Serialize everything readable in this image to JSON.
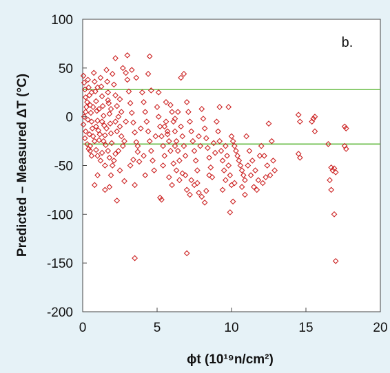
{
  "chart_data": {
    "type": "scatter",
    "title": "",
    "panel_label": "b.",
    "xlabel": "ϕt (10¹⁹n/cm²)",
    "ylabel": "Predicted – Measured ΔT (°C)",
    "xlim": [
      0,
      20
    ],
    "ylim": [
      -200,
      100
    ],
    "x_ticks": [
      "0",
      "5",
      "10",
      "15",
      "20"
    ],
    "y_ticks": [
      "100",
      "50",
      "0",
      "-50",
      "-100",
      "-150",
      "-200"
    ],
    "grid": false,
    "marker": "open-diamond",
    "colors": {
      "points": "#cc2222",
      "bands": "#66bb44",
      "background": "#e6f2f7",
      "plot_area": "#ffffff"
    },
    "reference_lines": [
      {
        "y": 28
      },
      {
        "y": -28
      }
    ],
    "points": [
      [
        0.05,
        42
      ],
      [
        0.1,
        35
      ],
      [
        0.15,
        28
      ],
      [
        0.2,
        20
      ],
      [
        0.25,
        10
      ],
      [
        0.1,
        0
      ],
      [
        0.05,
        -8
      ],
      [
        0.2,
        -15
      ],
      [
        0.15,
        -22
      ],
      [
        0.3,
        -28
      ],
      [
        0.35,
        38
      ],
      [
        0.4,
        30
      ],
      [
        0.45,
        22
      ],
      [
        0.5,
        12
      ],
      [
        0.55,
        4
      ],
      [
        0.6,
        -5
      ],
      [
        0.65,
        -12
      ],
      [
        0.7,
        -20
      ],
      [
        0.5,
        -30
      ],
      [
        0.4,
        -33
      ],
      [
        0.75,
        45
      ],
      [
        0.8,
        36
      ],
      [
        0.85,
        26
      ],
      [
        0.9,
        16
      ],
      [
        0.95,
        6
      ],
      [
        1.0,
        -4
      ],
      [
        1.05,
        -14
      ],
      [
        1.1,
        -24
      ],
      [
        0.9,
        -34
      ],
      [
        1.0,
        -40
      ],
      [
        1.2,
        40
      ],
      [
        1.25,
        31
      ],
      [
        1.3,
        21
      ],
      [
        1.35,
        11
      ],
      [
        1.4,
        1
      ],
      [
        1.45,
        -9
      ],
      [
        1.5,
        -19
      ],
      [
        1.55,
        -29
      ],
      [
        1.3,
        -37
      ],
      [
        1.2,
        -45
      ],
      [
        1.6,
        48
      ],
      [
        1.65,
        36
      ],
      [
        1.7,
        25
      ],
      [
        1.75,
        14
      ],
      [
        1.8,
        3
      ],
      [
        1.85,
        -7
      ],
      [
        1.9,
        -17
      ],
      [
        1.95,
        -27
      ],
      [
        1.7,
        -35
      ],
      [
        1.8,
        -42
      ],
      [
        2.0,
        44
      ],
      [
        2.1,
        33
      ],
      [
        2.2,
        22
      ],
      [
        2.3,
        11
      ],
      [
        2.4,
        0
      ],
      [
        2.5,
        -10
      ],
      [
        2.6,
        -20
      ],
      [
        2.7,
        -30
      ],
      [
        2.2,
        -38
      ],
      [
        2.0,
        -50
      ],
      [
        0.3,
        15
      ],
      [
        0.6,
        25
      ],
      [
        0.9,
        -10
      ],
      [
        1.1,
        8
      ],
      [
        1.4,
        -25
      ],
      [
        1.7,
        17
      ],
      [
        2.3,
        -15
      ],
      [
        2.6,
        5
      ],
      [
        0.45,
        -18
      ],
      [
        0.8,
        -25
      ],
      [
        1.0,
        30
      ],
      [
        1.3,
        -5
      ],
      [
        1.6,
        -12
      ],
      [
        1.9,
        8
      ],
      [
        2.2,
        -5
      ],
      [
        2.5,
        18
      ],
      [
        0.2,
        5
      ],
      [
        0.35,
        -3
      ],
      [
        0.7,
        10
      ],
      [
        1.15,
        -18
      ],
      [
        0.6,
        -40
      ],
      [
        1.5,
        -50
      ],
      [
        1.0,
        -60
      ],
      [
        0.8,
        -70
      ],
      [
        0.5,
        -35
      ],
      [
        1.9,
        -60
      ],
      [
        2.1,
        -45
      ],
      [
        2.4,
        -35
      ],
      [
        2.8,
        -25
      ],
      [
        2.9,
        -5
      ],
      [
        3.0,
        38
      ],
      [
        3.1,
        26
      ],
      [
        3.2,
        14
      ],
      [
        3.3,
        4
      ],
      [
        3.4,
        -6
      ],
      [
        3.5,
        -16
      ],
      [
        3.6,
        -26
      ],
      [
        3.7,
        -36
      ],
      [
        3.8,
        -46
      ],
      [
        3.9,
        -12
      ],
      [
        4.0,
        25
      ],
      [
        4.1,
        15
      ],
      [
        4.2,
        5
      ],
      [
        4.3,
        -5
      ],
      [
        4.4,
        -15
      ],
      [
        4.5,
        -25
      ],
      [
        4.6,
        -35
      ],
      [
        4.7,
        -45
      ],
      [
        4.8,
        -55
      ],
      [
        4.9,
        -20
      ],
      [
        3.0,
        63
      ],
      [
        2.7,
        50
      ],
      [
        2.2,
        60
      ],
      [
        3.6,
        40
      ],
      [
        4.5,
        62
      ],
      [
        4.4,
        44
      ],
      [
        3.3,
        48
      ],
      [
        2.9,
        45
      ],
      [
        4.6,
        27
      ],
      [
        4.2,
        -60
      ],
      [
        3.5,
        -70
      ],
      [
        3.2,
        -50
      ],
      [
        2.8,
        -66
      ],
      [
        2.3,
        -86
      ],
      [
        1.5,
        -75
      ],
      [
        1.8,
        -72
      ],
      [
        3.7,
        -30
      ],
      [
        4.1,
        -40
      ],
      [
        3.4,
        -44
      ],
      [
        2.5,
        -55
      ],
      [
        5.0,
        10
      ],
      [
        5.1,
        0
      ],
      [
        5.2,
        -10
      ],
      [
        5.3,
        -20
      ],
      [
        5.4,
        -30
      ],
      [
        5.5,
        -40
      ],
      [
        5.6,
        -5
      ],
      [
        5.7,
        -15
      ],
      [
        5.8,
        -25
      ],
      [
        5.9,
        -35
      ],
      [
        6.0,
        5
      ],
      [
        6.1,
        -5
      ],
      [
        6.2,
        -15
      ],
      [
        6.3,
        -25
      ],
      [
        6.4,
        -35
      ],
      [
        6.5,
        -45
      ],
      [
        6.6,
        -10
      ],
      [
        6.7,
        -20
      ],
      [
        6.8,
        -30
      ],
      [
        6.9,
        -40
      ],
      [
        5.3,
        -85
      ],
      [
        5.2,
        -83
      ],
      [
        6.1,
        -48
      ],
      [
        5.4,
        -50
      ],
      [
        5.8,
        -62
      ],
      [
        6.3,
        -55
      ],
      [
        6.7,
        -58
      ],
      [
        6.9,
        -60
      ],
      [
        5.6,
        15
      ],
      [
        5.1,
        25
      ],
      [
        6.6,
        40
      ],
      [
        6.8,
        44
      ],
      [
        5.9,
        12
      ],
      [
        6.2,
        -2
      ],
      [
        6.4,
        5
      ],
      [
        6.0,
        -70
      ],
      [
        6.5,
        -65
      ],
      [
        6.2,
        -30
      ],
      [
        5.5,
        -10
      ],
      [
        5.7,
        -18
      ],
      [
        7.0,
        15
      ],
      [
        7.1,
        5
      ],
      [
        7.2,
        -5
      ],
      [
        7.3,
        -15
      ],
      [
        7.4,
        -25
      ],
      [
        7.5,
        -35
      ],
      [
        7.6,
        -45
      ],
      [
        7.7,
        -55
      ],
      [
        7.8,
        -20
      ],
      [
        7.9,
        -30
      ],
      [
        8.0,
        8
      ],
      [
        8.1,
        -2
      ],
      [
        8.2,
        -12
      ],
      [
        8.3,
        -22
      ],
      [
        8.4,
        -32
      ],
      [
        8.5,
        -42
      ],
      [
        8.6,
        -52
      ],
      [
        8.7,
        -62
      ],
      [
        8.8,
        -27
      ],
      [
        8.9,
        -37
      ],
      [
        7.0,
        -75
      ],
      [
        7.2,
        -80
      ],
      [
        7.5,
        -70
      ],
      [
        7.8,
        -78
      ],
      [
        8.0,
        -82
      ],
      [
        8.2,
        -88
      ],
      [
        8.3,
        -76
      ],
      [
        7.3,
        -65
      ],
      [
        7.7,
        -68
      ],
      [
        8.5,
        -60
      ],
      [
        9.0,
        -5
      ],
      [
        9.1,
        -15
      ],
      [
        9.2,
        -25
      ],
      [
        9.3,
        -35
      ],
      [
        9.4,
        -45
      ],
      [
        9.5,
        -55
      ],
      [
        9.6,
        -30
      ],
      [
        9.7,
        -40
      ],
      [
        9.8,
        -50
      ],
      [
        9.9,
        -60
      ],
      [
        10.0,
        -20
      ],
      [
        10.2,
        -30
      ],
      [
        10.4,
        -40
      ],
      [
        10.6,
        -50
      ],
      [
        10.8,
        -60
      ],
      [
        10.1,
        -25
      ],
      [
        10.3,
        -35
      ],
      [
        10.5,
        -45
      ],
      [
        10.7,
        -55
      ],
      [
        10.9,
        -65
      ],
      [
        9.8,
        10
      ],
      [
        9.2,
        10
      ],
      [
        10.0,
        -70
      ],
      [
        10.2,
        -68
      ],
      [
        10.1,
        -87
      ],
      [
        9.9,
        -98
      ],
      [
        10.9,
        -80
      ],
      [
        10.7,
        -72
      ],
      [
        9.6,
        -65
      ],
      [
        9.4,
        -75
      ],
      [
        11.0,
        -20
      ],
      [
        11.2,
        -35
      ],
      [
        11.4,
        -45
      ],
      [
        11.6,
        -55
      ],
      [
        11.8,
        -65
      ],
      [
        11.1,
        -50
      ],
      [
        11.3,
        -60
      ],
      [
        11.5,
        -72
      ],
      [
        11.7,
        -75
      ],
      [
        11.9,
        -40
      ],
      [
        12.0,
        -30
      ],
      [
        12.2,
        -40
      ],
      [
        12.4,
        -50
      ],
      [
        12.6,
        -60
      ],
      [
        12.8,
        -45
      ],
      [
        12.5,
        -7
      ],
      [
        12.7,
        -25
      ],
      [
        12.9,
        -55
      ],
      [
        12.1,
        -68
      ],
      [
        12.3,
        -62
      ],
      [
        14.5,
        2
      ],
      [
        14.6,
        -5
      ],
      [
        14.5,
        -38
      ],
      [
        14.6,
        -42
      ],
      [
        15.6,
        0
      ],
      [
        15.5,
        -2
      ],
      [
        15.6,
        -15
      ],
      [
        15.4,
        -5
      ],
      [
        16.5,
        -28
      ],
      [
        16.7,
        -52
      ],
      [
        16.6,
        -65
      ],
      [
        16.8,
        -55
      ],
      [
        16.9,
        -53
      ],
      [
        17.0,
        -57
      ],
      [
        16.7,
        -75
      ],
      [
        16.9,
        -100
      ],
      [
        17.0,
        -148
      ],
      [
        17.6,
        -10
      ],
      [
        17.7,
        -12
      ],
      [
        17.6,
        -30
      ],
      [
        17.7,
        -33
      ],
      [
        3.5,
        -145
      ],
      [
        7.0,
        -140
      ]
    ]
  }
}
